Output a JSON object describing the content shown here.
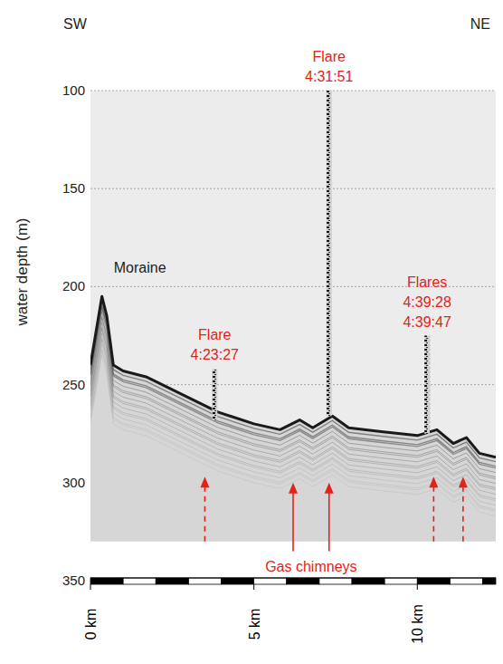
{
  "chart_data": {
    "type": "echogram",
    "y_label": "water depth (m)",
    "ylim": [
      100,
      350
    ],
    "yticks": [
      100,
      150,
      200,
      250,
      300,
      350
    ],
    "xlim": [
      0,
      12.4
    ],
    "xticks": [
      {
        "value": 0,
        "label": "0 km"
      },
      {
        "value": 5,
        "label": "5 km"
      },
      {
        "value": 10,
        "label": "10 km"
      }
    ],
    "scale_bar_step": 1,
    "grid": true,
    "color": "#e2231a",
    "ends": {
      "left": "SW",
      "right": "NE"
    },
    "profile_bottom": 330,
    "seafloor": {
      "x": [
        0,
        0.35,
        0.5,
        0.7,
        1.0,
        1.7,
        2.8,
        3.9,
        5.0,
        5.8,
        6.4,
        6.8,
        7.4,
        7.9,
        8.9,
        10.0,
        10.6,
        11.1,
        11.5,
        11.9,
        12.4
      ],
      "values": [
        240,
        205,
        215,
        240,
        243,
        246,
        255,
        264,
        270,
        273,
        268,
        272,
        266,
        272,
        274,
        276,
        273,
        280,
        277,
        285,
        287
      ]
    },
    "landmark": {
      "label": "Moraine",
      "x": 0.35
    },
    "flares": [
      {
        "label": "Flare",
        "times": [
          "4:23:27"
        ],
        "x": 3.8,
        "top": 242,
        "bottom": 268
      },
      {
        "label": "Flare",
        "times": [
          "4:31:51"
        ],
        "x": 7.3,
        "top": 100,
        "bottom": 266
      },
      {
        "label": "Flares",
        "times": [
          "4:39:28",
          "4:39:47"
        ],
        "x": 10.3,
        "top": 225,
        "bottom": 275
      }
    ],
    "chimneys": {
      "label": "Gas chimneys",
      "arrows": [
        {
          "x": 3.5,
          "tip": 297,
          "tail": 330,
          "line_style": "dashed"
        },
        {
          "x": 6.2,
          "tip": 300,
          "tail": 335,
          "line_style": "solid"
        },
        {
          "x": 7.3,
          "tip": 300,
          "tail": 335,
          "line_style": "solid"
        },
        {
          "x": 10.5,
          "tip": 297,
          "tail": 330,
          "line_style": "dashed"
        },
        {
          "x": 11.4,
          "tip": 297,
          "tail": 330,
          "line_style": "dashed"
        }
      ]
    }
  }
}
